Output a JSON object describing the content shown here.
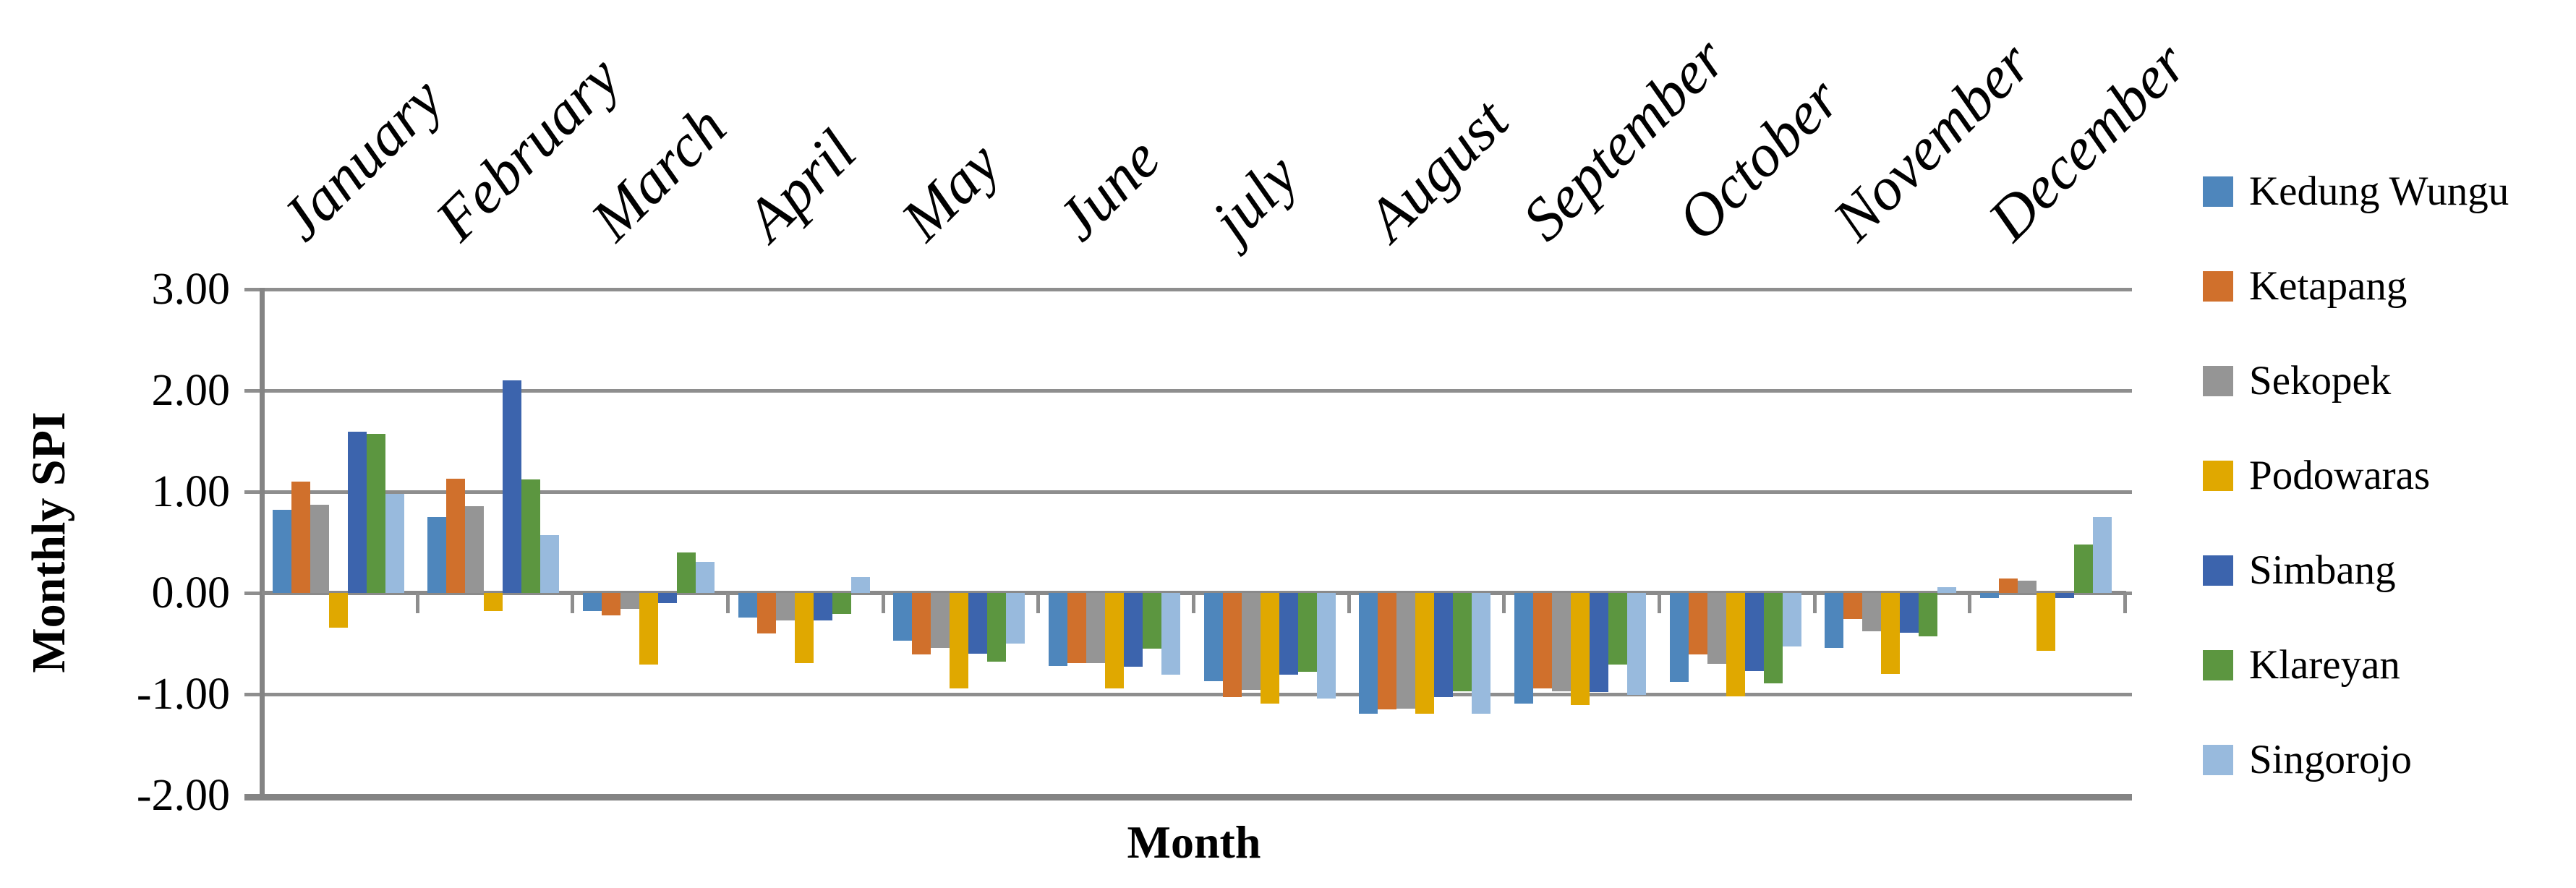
{
  "figure": {
    "background": "#ffffff",
    "gridline_color": "#8e8e8e",
    "axis_color": "#848484"
  },
  "chart_data": {
    "type": "bar",
    "title": "",
    "xlabel": "Month",
    "ylabel": "Monthly SPI",
    "ylim": [
      -2,
      3
    ],
    "ytick_step": 1.0,
    "ytick_labels": [
      "3.00",
      "2.00",
      "1.00",
      "0.00",
      "-1.00",
      "-2.00"
    ],
    "grid": true,
    "legend_position": "right",
    "categories": [
      "January",
      "February",
      "March",
      "April",
      "May",
      "June",
      "july",
      "August",
      "September",
      "October",
      "November",
      "December"
    ],
    "series": [
      {
        "name": "Kedung Wungu",
        "color": "#4e86bc",
        "values": [
          0.82,
          0.75,
          -0.18,
          -0.24,
          -0.47,
          -0.72,
          -0.87,
          -1.19,
          -1.09,
          -0.88,
          -0.54,
          -0.05
        ]
      },
      {
        "name": "Ketapang",
        "color": "#d0702c",
        "values": [
          1.1,
          1.13,
          -0.22,
          -0.4,
          -0.61,
          -0.69,
          -1.03,
          -1.15,
          -0.94,
          -0.61,
          -0.26,
          0.14
        ]
      },
      {
        "name": "Sekopek",
        "color": "#959595",
        "values": [
          0.87,
          0.86,
          -0.16,
          -0.27,
          -0.54,
          -0.69,
          -0.96,
          -1.14,
          -0.97,
          -0.7,
          -0.38,
          0.12
        ]
      },
      {
        "name": "Podowaras",
        "color": "#e0a800",
        "values": [
          -0.34,
          -0.18,
          -0.71,
          -0.69,
          -0.94,
          -0.94,
          -1.09,
          -1.19,
          -1.11,
          -1.02,
          -0.8,
          -0.57
        ]
      },
      {
        "name": "Simbang",
        "color": "#3c64ad",
        "values": [
          1.59,
          2.1,
          -0.1,
          -0.27,
          -0.6,
          -0.73,
          -0.81,
          -1.03,
          -0.98,
          -0.77,
          -0.39,
          -0.05
        ]
      },
      {
        "name": "Klareyan",
        "color": "#5c9640",
        "values": [
          1.57,
          1.12,
          0.4,
          -0.21,
          -0.68,
          -0.55,
          -0.78,
          -0.97,
          -0.71,
          -0.89,
          -0.43,
          0.48
        ]
      },
      {
        "name": "Singorojo",
        "color": "#98badd",
        "values": [
          0.98,
          0.57,
          0.31,
          0.16,
          -0.5,
          -0.81,
          -1.04,
          -1.19,
          -1.01,
          -0.53,
          0.06,
          0.75
        ]
      }
    ]
  }
}
